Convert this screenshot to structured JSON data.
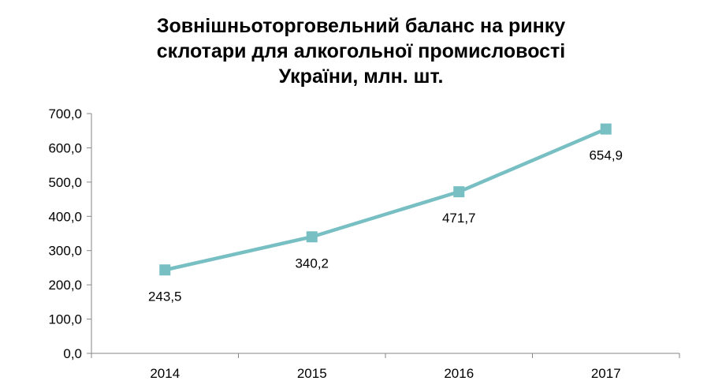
{
  "chart_data": {
    "type": "line",
    "title_lines": [
      "Зовнішньоторговельний баланс на ринку",
      "склотари для алкогольної промисловості",
      "України, млн. шт."
    ],
    "xlabel": "",
    "ylabel": "",
    "categories": [
      "2014",
      "2015",
      "2016",
      "2017"
    ],
    "series": [
      {
        "values": [
          243.5,
          340.2,
          471.7,
          654.9
        ],
        "labels": [
          "243,5",
          "340,2",
          "471,7",
          "654,9"
        ],
        "color": "#77BFC3"
      }
    ],
    "ylim": [
      0,
      700
    ],
    "yticks": [
      {
        "value": 0,
        "label": "0,0"
      },
      {
        "value": 100,
        "label": "100,0"
      },
      {
        "value": 200,
        "label": "200,0"
      },
      {
        "value": 300,
        "label": "300,0"
      },
      {
        "value": 400,
        "label": "400,0"
      },
      {
        "value": 500,
        "label": "500,0"
      },
      {
        "value": 600,
        "label": "600,0"
      },
      {
        "value": 700,
        "label": "700,0"
      }
    ],
    "grid": false,
    "legend": "none",
    "axis_color": "#868686"
  }
}
